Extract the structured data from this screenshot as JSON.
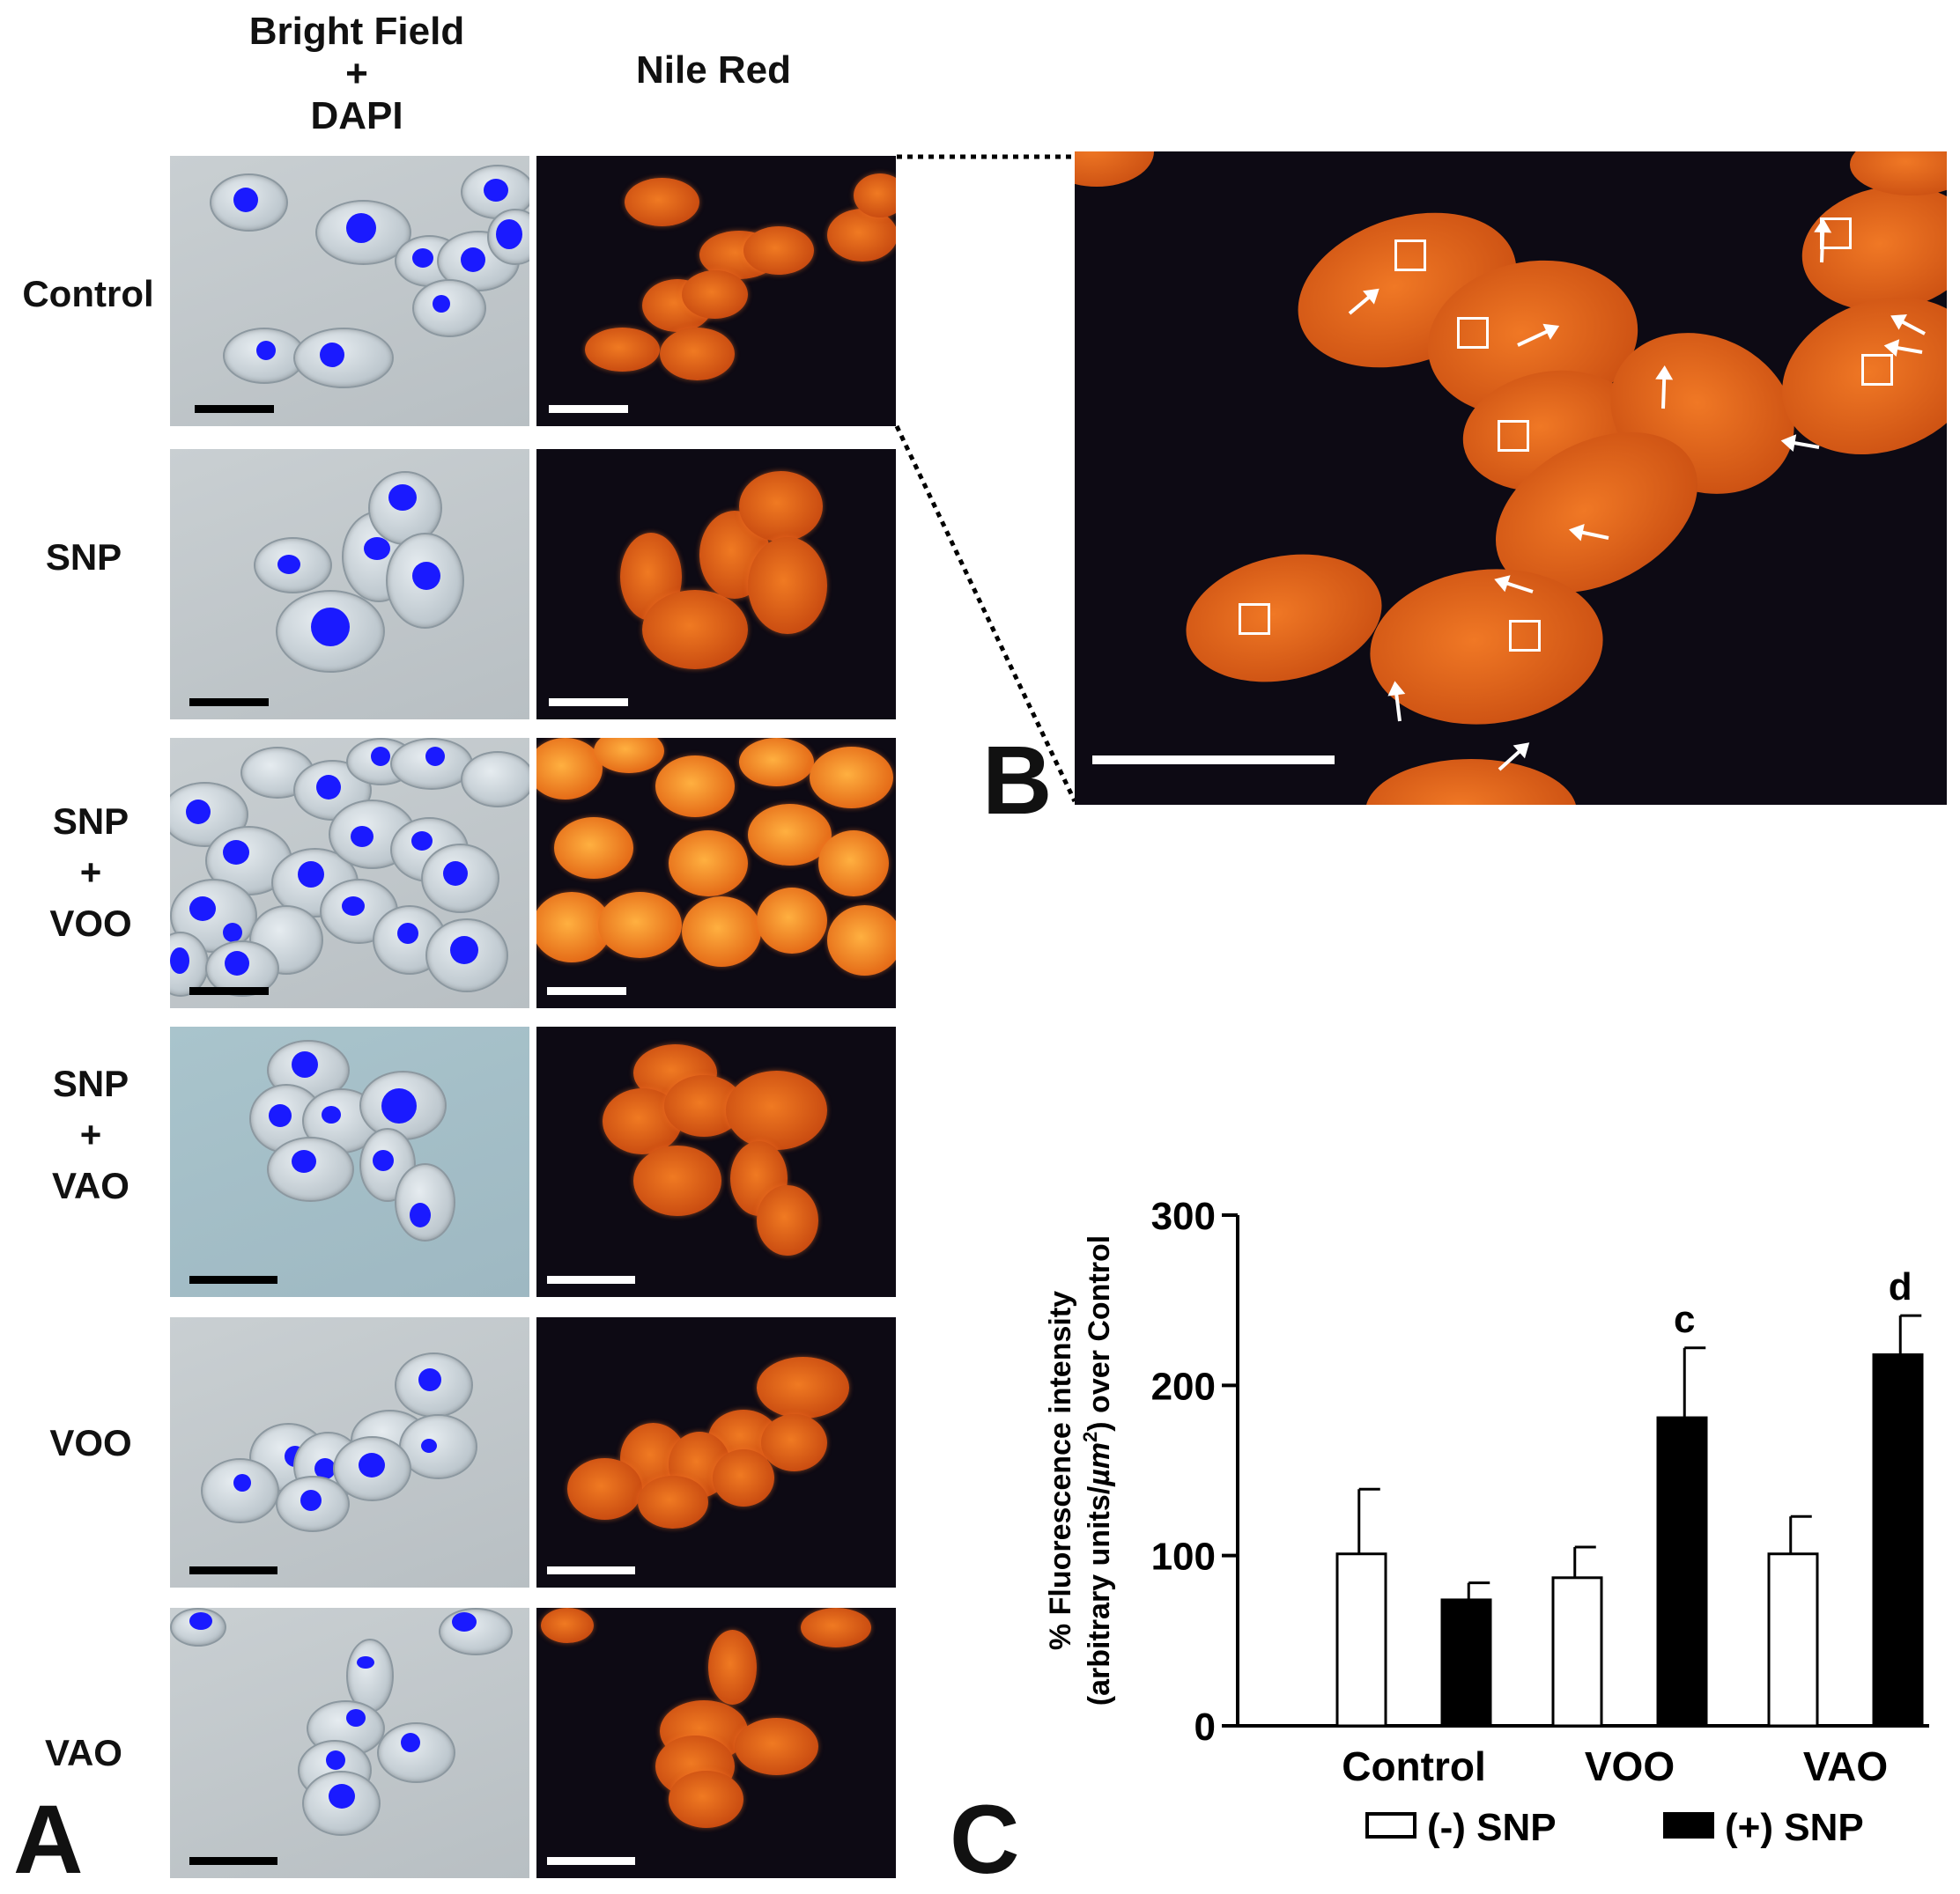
{
  "panel_a": {
    "letter": "A",
    "col_header_1": [
      "Bright Field",
      "+",
      "DAPI"
    ],
    "col_header_2": "Nile Red",
    "rows": [
      {
        "label": [
          "Control"
        ]
      },
      {
        "label": [
          "SNP"
        ]
      },
      {
        "label": [
          "SNP",
          "+",
          "VOO"
        ]
      },
      {
        "label": [
          "SNP",
          "+",
          "VAO"
        ]
      },
      {
        "label": [
          "VOO"
        ]
      },
      {
        "label": [
          "VAO"
        ]
      }
    ]
  },
  "panel_b": {
    "letter": "B"
  },
  "panel_c": {
    "letter": "C"
  },
  "chart_data": {
    "type": "bar",
    "categories": [
      "Control",
      "VOO",
      "VAO"
    ],
    "series": [
      {
        "name": "(-) SNP",
        "values": [
          101,
          87,
          101
        ],
        "errors": [
          38,
          18,
          22
        ],
        "color": "#ffffff"
      },
      {
        "name": "(+) SNP",
        "values": [
          74,
          181,
          218
        ],
        "errors": [
          10,
          41,
          23
        ],
        "color": "#000000"
      }
    ],
    "annotations": [
      {
        "category": "VOO",
        "series": "(+) SNP",
        "text": "c"
      },
      {
        "category": "VAO",
        "series": "(+) SNP",
        "text": "d"
      }
    ],
    "ylabel_line1": "% Fluorescence intensity",
    "ylabel_line2_pre": "(arbitrary units/",
    "ylabel_line2_mu": "µm",
    "ylabel_line2_sup": "2",
    "ylabel_line2_post": ") over Control",
    "yticks": [
      0,
      100,
      200,
      300
    ],
    "ylim": [
      0,
      300
    ],
    "legend_placement": "bottom"
  }
}
